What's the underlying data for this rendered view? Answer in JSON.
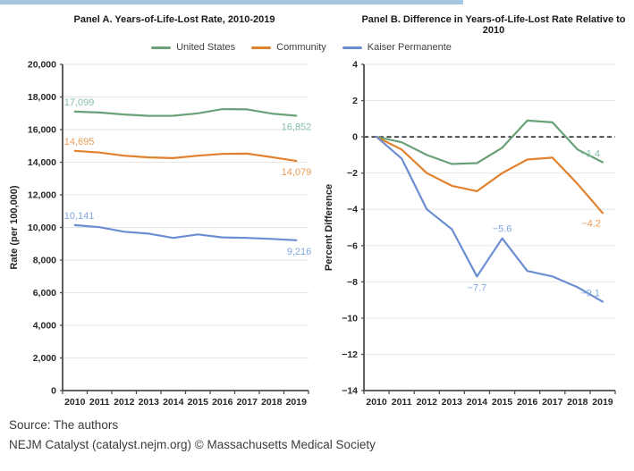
{
  "topbar_color": "#a5c6e1",
  "legend": {
    "items": [
      {
        "label": "United States",
        "color": "#69a178"
      },
      {
        "label": "Community",
        "color": "#e1812e"
      },
      {
        "label": "Kaiser Permanente",
        "color": "#6a8ed1"
      }
    ]
  },
  "footer": {
    "line1": "Source: The authors",
    "line2": "NEJM Catalyst (catalyst.nejm.org) © Massachusetts Medical Society"
  },
  "chart_data": [
    {
      "type": "line",
      "title": "Panel A. Years-of-Life-Lost Rate, 2010-2019",
      "xlabel": "",
      "ylabel": "Rate (per 100,000)",
      "ylim": [
        0,
        20000
      ],
      "ystep": 2000,
      "grid": true,
      "legend_position": "top",
      "zero_dashed": false,
      "categories": [
        "2010",
        "2011",
        "2012",
        "2013",
        "2014",
        "2015",
        "2016",
        "2017",
        "2018",
        "2019"
      ],
      "ytick_labels": [
        "0",
        "2,000",
        "4,000",
        "6,000",
        "8,000",
        "10,000",
        "12,000",
        "14,000",
        "16,000",
        "18,000",
        "20,000"
      ],
      "series": [
        {
          "name": "United States",
          "color": "#69a178",
          "label_color": "#86bfae",
          "values": [
            17099,
            17048,
            16928,
            16843,
            16851,
            16996,
            17253,
            17236,
            16979,
            16852
          ]
        },
        {
          "name": "Community",
          "color": "#e1812e",
          "label_color": "#ec9b57",
          "values": [
            14695,
            14592,
            14401,
            14298,
            14254,
            14401,
            14511,
            14526,
            14313,
            14079
          ]
        },
        {
          "name": "Kaiser Permanente",
          "color": "#6a8ed1",
          "label_color": "#7fa7de",
          "values": [
            10141,
            10019,
            9735,
            9624,
            9360,
            9573,
            9391,
            9360,
            9299,
            9216
          ]
        }
      ],
      "annotations": [
        {
          "series": 0,
          "index": 0,
          "text": "17,099",
          "pos": "start-above"
        },
        {
          "series": 0,
          "index": 9,
          "text": "16,852",
          "pos": "end-below"
        },
        {
          "series": 1,
          "index": 0,
          "text": "14,695",
          "pos": "start-above"
        },
        {
          "series": 1,
          "index": 9,
          "text": "14,079",
          "pos": "end-below"
        },
        {
          "series": 2,
          "index": 0,
          "text": "10,141",
          "pos": "start-above"
        },
        {
          "series": 2,
          "index": 9,
          "text": "9,216",
          "pos": "end-below"
        }
      ]
    },
    {
      "type": "line",
      "title": "Panel B. Difference in Years-of-Life-Lost Rate Relative to 2010",
      "xlabel": "",
      "ylabel": "Percent Difference",
      "ylim": [
        -14,
        4
      ],
      "ystep": 2,
      "grid": true,
      "legend_position": "top",
      "zero_dashed": true,
      "categories": [
        "2010",
        "2011",
        "2012",
        "2013",
        "2014",
        "2015",
        "2016",
        "2017",
        "2018",
        "2019"
      ],
      "ytick_labels": [
        "−14",
        "−12",
        "−10",
        "−8",
        "−6",
        "−4",
        "−2",
        "0",
        "2",
        "4"
      ],
      "series": [
        {
          "name": "United States",
          "color": "#69a178",
          "label_color": "#86bfae",
          "values": [
            0,
            -0.3,
            -1.0,
            -1.5,
            -1.45,
            -0.6,
            0.9,
            0.8,
            -0.7,
            -1.4
          ]
        },
        {
          "name": "Community",
          "color": "#e1812e",
          "label_color": "#ec9b57",
          "values": [
            0,
            -0.7,
            -2.0,
            -2.7,
            -3.0,
            -2.0,
            -1.25,
            -1.15,
            -2.6,
            -4.2
          ]
        },
        {
          "name": "Kaiser Permanente",
          "color": "#6a8ed1",
          "label_color": "#7fa7de",
          "values": [
            0,
            -1.2,
            -4.0,
            -5.1,
            -7.7,
            -5.6,
            -7.4,
            -7.7,
            -8.3,
            -9.1
          ]
        }
      ],
      "annotations": [
        {
          "series": 0,
          "index": 9,
          "text": "−1.4",
          "pos": "left-above"
        },
        {
          "series": 1,
          "index": 9,
          "text": "−4.2",
          "pos": "left-below"
        },
        {
          "series": 2,
          "index": 4,
          "text": "−7.7",
          "pos": "below"
        },
        {
          "series": 2,
          "index": 5,
          "text": "−5.6",
          "pos": "above"
        },
        {
          "series": 2,
          "index": 9,
          "text": "−9.1",
          "pos": "left-above"
        }
      ]
    }
  ]
}
